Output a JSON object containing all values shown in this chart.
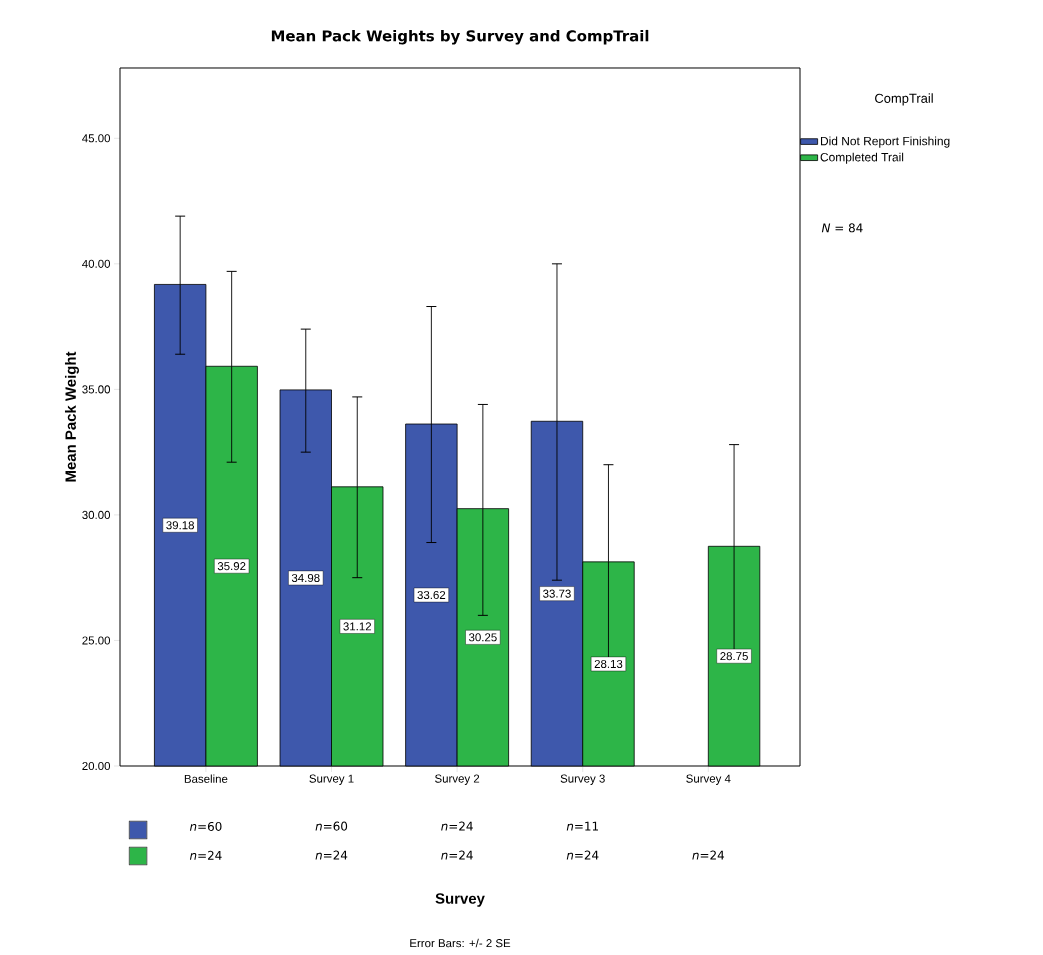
{
  "chart_data": {
    "type": "bar",
    "title": "Mean Pack Weights by Survey and CompTrail",
    "ylabel": "Mean Pack Weight",
    "legend_title": "CompTrail",
    "categories": [
      "Baseline",
      "Survey 1",
      "Survey 2",
      "Survey 3",
      "Survey 4"
    ],
    "series": [
      {
        "name": "Did Not Report Finishing",
        "color": "#3e58ac",
        "values": [
          39.18,
          34.98,
          33.62,
          33.73,
          null
        ],
        "errors": [
          [
            36.4,
            41.9
          ],
          [
            32.5,
            37.4
          ],
          [
            28.9,
            38.3
          ],
          [
            27.4,
            40.0
          ],
          null
        ]
      },
      {
        "name": "Completed Trail",
        "color": "#2db548",
        "values": [
          35.92,
          31.12,
          30.25,
          28.13,
          28.75
        ],
        "errors": [
          [
            32.1,
            39.7
          ],
          [
            27.5,
            34.7
          ],
          [
            26.0,
            34.4
          ],
          [
            24.2,
            32.0
          ],
          [
            24.6,
            32.8
          ]
        ]
      }
    ],
    "ylim": [
      20,
      47.8
    ],
    "yticks": [
      {
        "value": 20,
        "label": "20.00"
      },
      {
        "value": 25,
        "label": "25.00"
      },
      {
        "value": 30,
        "label": "30.00"
      },
      {
        "value": 35,
        "label": "35.00"
      },
      {
        "value": 40,
        "label": "40.00"
      },
      {
        "value": 45,
        "label": "45.00"
      }
    ],
    "data_labels": true,
    "legend": "right",
    "annotations": [
      "*n*=60",
      "*n*=24",
      "*n*=60",
      "*n*=24",
      "*n*=24",
      "*n*=24",
      "*n*=11",
      "*n*=24",
      "*n*=24",
      "*N* = 84",
      "Survey",
      "Error Bars: +/- 2 SE"
    ]
  }
}
